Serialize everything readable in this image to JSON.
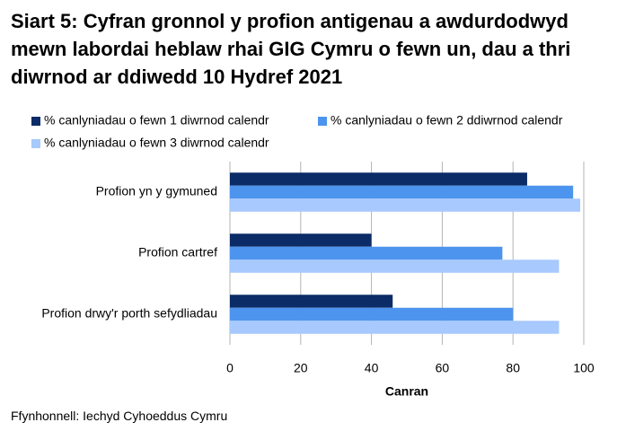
{
  "chart_data": {
    "type": "hbar",
    "title": "Siart 5: Cyfran gronnol y profion antigenau a awdurdodwyd mewn labordai heblaw rhai GIG Cymru o fewn un, dau a thri diwrnod ar ddiwedd 10 Hydref 2021",
    "categories": [
      "Profion yn y gymuned",
      "Profion cartref",
      "Profion drwy'r porth sefydliadau"
    ],
    "series": [
      {
        "name": "% canlyniadau o fewn 1 diwrnod calendr",
        "color": "#0b2c66",
        "values": [
          84,
          40,
          46
        ]
      },
      {
        "name": "% canlyniadau o fewn 2 ddiwrnod calendr",
        "color": "#4d94ee",
        "values": [
          97,
          77,
          80
        ]
      },
      {
        "name": "% canlyniadau o fewn 3 diwrnod calendr",
        "color": "#a7c9fd",
        "values": [
          99,
          93,
          93
        ]
      }
    ],
    "xlim": [
      0,
      100
    ],
    "xticks": [
      0,
      20,
      40,
      60,
      80,
      100
    ],
    "x_label": "Canran",
    "grid": true,
    "source": "Ffynhonnell: Iechyd Cyhoeddus Cymru"
  }
}
